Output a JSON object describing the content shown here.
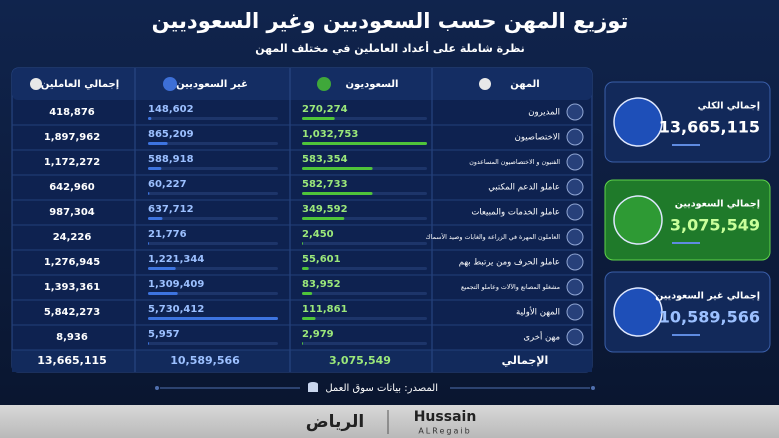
{
  "header": {
    "title": "توزيع المهن حسب السعوديين وغير السعوديين",
    "subtitle": "نظرة شاملة على أعداد العاملين في مختلف المهن"
  },
  "table": {
    "columns": [
      "المهن",
      "السعوديون",
      "غير السعوديين",
      "إجمالي العاملين"
    ],
    "rows": [
      [
        "المديرون",
        "270,274",
        "148,602",
        "418,876"
      ],
      [
        "الاختصاصيون",
        "1,032,753",
        "865,209",
        "1,897,962"
      ],
      [
        "الفنيون و الاختصاصيون المساعدون",
        "583,354",
        "588,918",
        "1,172,272"
      ],
      [
        "عاملو الدعم المكتبي",
        "582,733",
        "60,227",
        "642,960"
      ],
      [
        "عاملو الخدمات والمبيعات",
        "349,592",
        "637,712",
        "987,304"
      ],
      [
        "العاملون المهرة في الزراعة والغابات وصيد الأسماك",
        "2,450",
        "21,776",
        "24,226"
      ],
      [
        "عاملو الحرف ومن يرتبط بهم",
        "55,601",
        "1,221,344",
        "1,276,945"
      ],
      [
        "مشغلو المصانع والآلات وعاملو التجميع",
        "83,952",
        "1,309,409",
        "1,393,361"
      ],
      [
        "المهن الأولية",
        "111,861",
        "5,730,412",
        "5,842,273"
      ],
      [
        "مهن أخرى",
        "2,979",
        "5,957",
        "8,936"
      ]
    ],
    "total": [
      "الإجمالي",
      "3,075,549",
      "10,589,566",
      "13,665,115"
    ]
  },
  "cards": [
    {
      "label": "إجمالي الكلي",
      "value": "13,665,115"
    },
    {
      "label": "إجمالي السعوديين",
      "value": "3,075,549"
    },
    {
      "label": "إجمالي غير السعوديين",
      "value": "10,589,566"
    }
  ],
  "footer": {
    "source": "المصدر: بيانات سوق العمل",
    "logo_ar": "الرياض",
    "logo_en": "Hussain",
    "logo_en_sub": "ALRegaib"
  }
}
